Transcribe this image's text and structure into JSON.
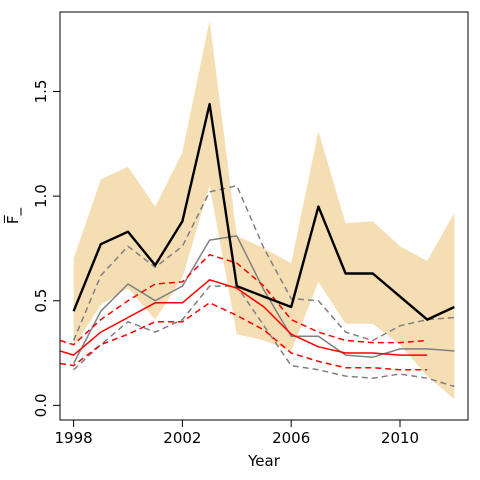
{
  "chart_data": {
    "type": "line",
    "xlabel": "Year",
    "ylabel": "F̅_",
    "xlim": [
      1997.5,
      2012.5
    ],
    "ylim": [
      -0.07,
      1.88
    ],
    "x_ticks": [
      "1998",
      "2002",
      "2006",
      "2010"
    ],
    "y_ticks": [
      "0.0",
      "0.5",
      "1.0",
      "1.5"
    ],
    "colors": {
      "band": "#f5deb3",
      "black": "#000000",
      "gray": "#808080",
      "red": "#ff0000"
    },
    "band": {
      "x": [
        1998,
        1999,
        2000,
        2001,
        2002,
        2003,
        2004,
        2005,
        2006,
        2007,
        2008,
        2009,
        2010,
        2011,
        2012
      ],
      "upper": [
        0.7,
        1.08,
        1.14,
        0.95,
        1.21,
        1.84,
        0.81,
        0.75,
        0.68,
        1.31,
        0.87,
        0.88,
        0.76,
        0.69,
        0.92
      ],
      "lower": [
        0.28,
        0.48,
        0.56,
        0.41,
        0.61,
        1.05,
        0.34,
        0.31,
        0.26,
        0.59,
        0.39,
        0.39,
        0.29,
        0.14,
        0.03
      ]
    },
    "series": [
      {
        "style": "black-solid",
        "x": [
          1998,
          1999,
          2000,
          2001,
          2002,
          2003,
          2004,
          2005,
          2006,
          2007,
          2008,
          2009,
          2010,
          2011,
          2012
        ],
        "values": [
          0.45,
          0.77,
          0.83,
          0.67,
          0.88,
          1.44,
          0.57,
          0.52,
          0.47,
          0.95,
          0.63,
          0.63,
          0.52,
          0.41,
          0.47
        ]
      },
      {
        "style": "gray-solid",
        "x": [
          1998,
          1999,
          2000,
          2001,
          2002,
          2003,
          2004,
          2005,
          2006,
          2007,
          2008,
          2009,
          2010,
          2011,
          2012
        ],
        "values": [
          0.2,
          0.45,
          0.58,
          0.5,
          0.57,
          0.79,
          0.81,
          0.55,
          0.33,
          0.33,
          0.24,
          0.23,
          0.27,
          0.27,
          0.26
        ]
      },
      {
        "style": "gray-dashed",
        "x": [
          1998,
          1999,
          2000,
          2001,
          2002,
          2003,
          2004,
          2005,
          2006,
          2007,
          2008,
          2009,
          2010,
          2011,
          2012
        ],
        "values": [
          0.31,
          0.62,
          0.76,
          0.66,
          0.76,
          1.02,
          1.05,
          0.75,
          0.51,
          0.5,
          0.35,
          0.31,
          0.38,
          0.41,
          0.42
        ]
      },
      {
        "style": "gray-dashed",
        "x": [
          1998,
          1999,
          2000,
          2001,
          2002,
          2003,
          2004,
          2005,
          2006,
          2007,
          2008,
          2009,
          2010,
          2011,
          2012
        ],
        "values": [
          0.17,
          0.29,
          0.4,
          0.35,
          0.41,
          0.57,
          0.57,
          0.38,
          0.19,
          0.17,
          0.14,
          0.13,
          0.15,
          0.13,
          0.09
        ]
      },
      {
        "style": "red-solid",
        "x": [
          1997.5,
          1998,
          1999,
          2000,
          2001,
          2002,
          2003,
          2004,
          2005,
          2006,
          2007,
          2008,
          2009,
          2010,
          2011
        ],
        "values": [
          0.26,
          0.24,
          0.35,
          0.42,
          0.49,
          0.49,
          0.6,
          0.56,
          0.47,
          0.34,
          0.28,
          0.25,
          0.25,
          0.24,
          0.24
        ]
      },
      {
        "style": "red-dashed",
        "x": [
          1997.5,
          1998,
          1999,
          2000,
          2001,
          2002,
          2003,
          2004,
          2005,
          2006,
          2007,
          2008,
          2009,
          2010,
          2011
        ],
        "values": [
          0.31,
          0.29,
          0.41,
          0.5,
          0.58,
          0.59,
          0.72,
          0.68,
          0.57,
          0.41,
          0.35,
          0.31,
          0.3,
          0.3,
          0.31
        ]
      },
      {
        "style": "red-dashed",
        "x": [
          1997.5,
          1998,
          1999,
          2000,
          2001,
          2002,
          2003,
          2004,
          2005,
          2006,
          2007,
          2008,
          2009,
          2010,
          2011
        ],
        "values": [
          0.2,
          0.19,
          0.29,
          0.34,
          0.4,
          0.4,
          0.49,
          0.43,
          0.36,
          0.25,
          0.21,
          0.18,
          0.18,
          0.17,
          0.17
        ]
      }
    ]
  }
}
